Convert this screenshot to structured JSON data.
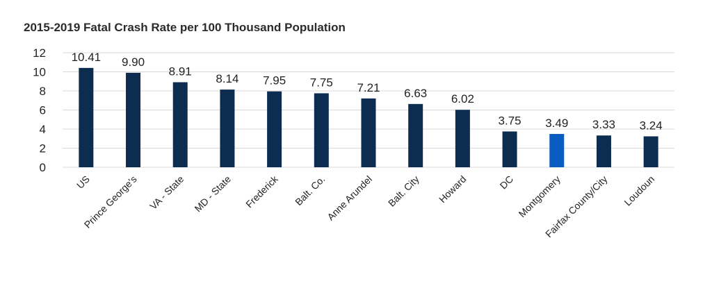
{
  "chart_data": {
    "type": "bar",
    "title": "2015-2019 Fatal Crash Rate per 100 Thousand Population",
    "xlabel": "",
    "ylabel": "",
    "ylim": [
      0,
      12
    ],
    "yticks": [
      0,
      2,
      4,
      6,
      8,
      10,
      12
    ],
    "grid": true,
    "legend": "none",
    "categories": [
      "US",
      "Prince George's",
      "VA - State",
      "MD - State",
      "Frederick",
      "Balt. Co.",
      "Anne Arundel",
      "Balt. City",
      "Howard",
      "DC",
      "Montgomery",
      "Fairfax County/City",
      "Loudoun"
    ],
    "values": [
      10.41,
      9.9,
      8.91,
      8.14,
      7.95,
      7.75,
      7.21,
      6.63,
      6.02,
      3.75,
      3.49,
      3.33,
      3.24
    ],
    "value_labels": [
      "10.41",
      "9.90",
      "8.91",
      "8.14",
      "7.95",
      "7.75",
      "7.21",
      "6.63",
      "6.02",
      "3.75",
      "3.49",
      "3.33",
      "3.24"
    ],
    "colors": {
      "default": "#0d2d50",
      "highlight": "#0b5cc0",
      "highlight_category": "Montgomery",
      "grid": "#d9d9d9"
    }
  }
}
